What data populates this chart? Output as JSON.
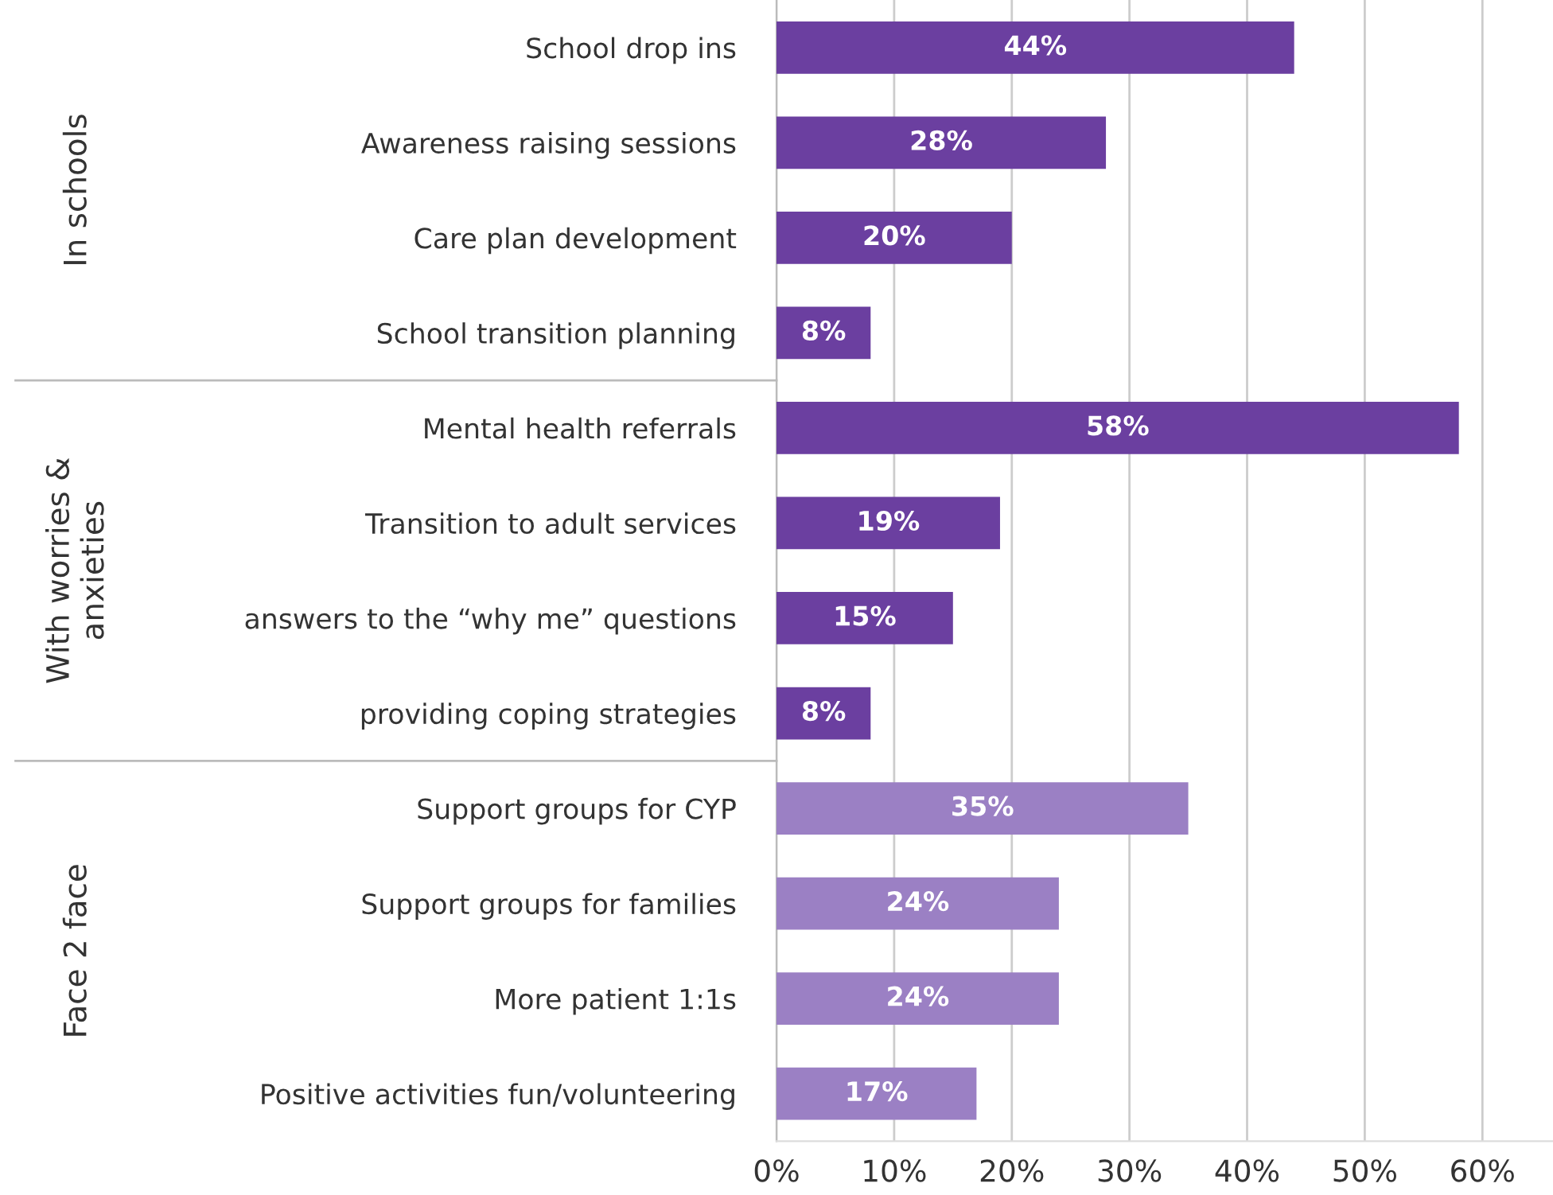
{
  "chart_data": {
    "type": "bar",
    "orientation": "horizontal",
    "categories": [
      "School drop ins",
      "Awareness raising sessions",
      "Care plan development",
      "School transition planning",
      "Mental health referrals",
      "Transition to adult services",
      "answers to the “why me” questions",
      "providing coping strategies",
      "Support groups for CYP",
      "Support groups for families",
      "More patient 1:1s",
      "Positive activities fun/volunteering"
    ],
    "values": [
      44,
      28,
      20,
      8,
      58,
      19,
      15,
      8,
      35,
      24,
      24,
      17
    ],
    "value_labels": [
      "44%",
      "28%",
      "20%",
      "8%",
      "58%",
      "19%",
      "15%",
      "8%",
      "35%",
      "24%",
      "24%",
      "17%"
    ],
    "colors": [
      "#6b3fa0",
      "#6b3fa0",
      "#6b3fa0",
      "#6b3fa0",
      "#6b3fa0",
      "#6b3fa0",
      "#6b3fa0",
      "#6b3fa0",
      "#9b80c4",
      "#9b80c4",
      "#9b80c4",
      "#9b80c4"
    ],
    "annotations": [
      "In schools",
      "With worries &\nanxieties",
      "Face 2 face"
    ],
    "xlim": [
      0,
      66
    ],
    "xticks": [
      {
        "value": 0,
        "label": "0%"
      },
      {
        "value": 10,
        "label": "10%"
      },
      {
        "value": 20,
        "label": "20%"
      },
      {
        "value": 30,
        "label": "30%"
      },
      {
        "value": 40,
        "label": "40%"
      },
      {
        "value": 50,
        "label": "50%"
      },
      {
        "value": 60,
        "label": "60%"
      }
    ],
    "grid": "x"
  }
}
